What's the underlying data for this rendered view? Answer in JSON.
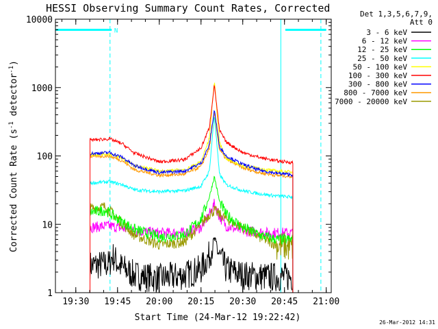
{
  "chart_data": {
    "type": "line",
    "title": "HESSI Observing Summary Count Rates, Corrected",
    "xlabel": "Start Time (24-Mar-12 19:22:42)",
    "ylabel_main": "Corrected Count Rate (s",
    "ylabel_sup1": "-1",
    "ylabel_mid": " detector",
    "ylabel_sup2": "-1",
    "ylabel_end": ")",
    "y_scale": "log",
    "ylim": [
      1,
      10000
    ],
    "xlim": [
      19.378,
      21.03
    ],
    "x_ticks": [
      {
        "v": 19.5,
        "label": "19:30"
      },
      {
        "v": 19.75,
        "label": "19:45"
      },
      {
        "v": 20.0,
        "label": "20:00"
      },
      {
        "v": 20.25,
        "label": "20:15"
      },
      {
        "v": 20.5,
        "label": "20:30"
      },
      {
        "v": 20.75,
        "label": "20:45"
      },
      {
        "v": 21.0,
        "label": "21:00"
      }
    ],
    "y_ticks": [
      {
        "v": 1,
        "label": "1"
      },
      {
        "v": 10,
        "label": "10"
      },
      {
        "v": 100,
        "label": "100"
      },
      {
        "v": 1000,
        "label": "1000"
      },
      {
        "v": 10000,
        "label": "10000"
      }
    ],
    "legend_header": [
      "Det 1,3,5,6,7,9,",
      "Att 0"
    ],
    "legend_position": "right",
    "flags": {
      "night_bar_color": "#00ffff",
      "night_bars": [
        [
          19.378,
          19.715
        ],
        [
          20.755,
          21.0
        ]
      ],
      "night_bar_value": 7000,
      "saa_label": "N",
      "saa_label_x": 19.73,
      "solid_lines": [
        19.378,
        20.728
      ],
      "dashed_lines": [
        19.705,
        20.968
      ]
    },
    "data_start": 19.585,
    "data_end": 20.8,
    "series": [
      {
        "name": "3 - 6 keV",
        "color": "#000000",
        "x": [
          19.585,
          19.7,
          19.72,
          19.76,
          19.85,
          20.0,
          20.15,
          20.25,
          20.3,
          20.33,
          20.36,
          20.4,
          20.5,
          20.65,
          20.8
        ],
        "y": [
          2.5,
          2.6,
          3.5,
          2.5,
          1.8,
          1.6,
          1.8,
          2.2,
          3.5,
          6.0,
          3.5,
          2.2,
          1.8,
          1.7,
          1.7
        ]
      },
      {
        "name": "6 - 12 keV",
        "color": "#ff00ff",
        "x": [
          19.585,
          19.7,
          19.75,
          19.85,
          20.0,
          20.15,
          20.25,
          20.3,
          20.33,
          20.36,
          20.4,
          20.5,
          20.65,
          20.8
        ],
        "y": [
          9.0,
          9.5,
          9.0,
          8.0,
          7.5,
          7.5,
          9.0,
          14.0,
          20.0,
          13.0,
          9.5,
          8.0,
          7.5,
          7.5
        ]
      },
      {
        "name": "12 - 25 keV",
        "color": "#00ff00",
        "x": [
          19.585,
          19.68,
          19.75,
          19.85,
          20.0,
          20.15,
          20.25,
          20.3,
          20.33,
          20.36,
          20.4,
          20.5,
          20.6,
          20.7,
          20.8
        ],
        "y": [
          15.0,
          16.0,
          12.0,
          8.5,
          6.5,
          7.0,
          12.0,
          25.0,
          50.0,
          22.0,
          14.0,
          9.0,
          7.0,
          6.0,
          6.0
        ]
      },
      {
        "name": "25 - 50 keV",
        "color": "#00ffff",
        "x": [
          19.585,
          19.7,
          19.78,
          19.85,
          20.0,
          20.15,
          20.25,
          20.3,
          20.33,
          20.36,
          20.4,
          20.5,
          20.6,
          20.7,
          20.8
        ],
        "y": [
          40.0,
          42.0,
          38.0,
          32.0,
          30.0,
          31.0,
          36.0,
          60.0,
          400.0,
          55.0,
          38.0,
          31.0,
          28.0,
          26.0,
          25.0
        ]
      },
      {
        "name": "50 - 100 keV",
        "color": "#ffff00",
        "x": [
          19.585,
          19.7,
          19.78,
          19.85,
          20.0,
          20.15,
          20.25,
          20.3,
          20.33,
          20.36,
          20.4,
          20.5,
          20.6,
          20.7,
          20.8
        ],
        "y": [
          105.0,
          108.0,
          92.0,
          72.0,
          60.0,
          62.0,
          82.0,
          180.0,
          1300.0,
          160.0,
          92.0,
          72.0,
          65.0,
          60.0,
          58.0
        ]
      },
      {
        "name": "100 - 300 keV",
        "color": "#ff0000",
        "x": [
          19.585,
          19.7,
          19.78,
          19.85,
          20.0,
          20.15,
          20.25,
          20.3,
          20.33,
          20.36,
          20.4,
          20.5,
          20.6,
          20.7,
          20.8
        ],
        "y": [
          170.0,
          178.0,
          150.0,
          110.0,
          82.0,
          88.0,
          130.0,
          260.0,
          1100.0,
          240.0,
          160.0,
          112.0,
          95.0,
          85.0,
          80.0
        ]
      },
      {
        "name": "300 - 800 keV",
        "color": "#0000ff",
        "x": [
          19.585,
          19.7,
          19.78,
          19.85,
          20.0,
          20.15,
          20.25,
          20.3,
          20.33,
          20.36,
          20.4,
          20.5,
          20.6,
          20.7,
          20.8
        ],
        "y": [
          108.0,
          112.0,
          95.0,
          72.0,
          57.0,
          60.0,
          78.0,
          145.0,
          480.0,
          140.0,
          100.0,
          75.0,
          62.0,
          56.0,
          53.0
        ]
      },
      {
        "name": "800 - 7000 keV",
        "color": "#ff9900",
        "x": [
          19.585,
          19.7,
          19.78,
          19.85,
          20.0,
          20.15,
          20.25,
          20.3,
          20.33,
          20.36,
          20.4,
          20.5,
          20.6,
          20.7,
          20.8
        ],
        "y": [
          98.0,
          100.0,
          85.0,
          63.0,
          52.0,
          54.0,
          70.0,
          130.0,
          430.0,
          125.0,
          90.0,
          67.0,
          57.0,
          52.0,
          50.0
        ]
      },
      {
        "name": "7000 - 20000 keV",
        "color": "#999900",
        "x": [
          19.585,
          19.68,
          19.75,
          19.85,
          20.0,
          20.15,
          20.25,
          20.3,
          20.33,
          20.36,
          20.4,
          20.5,
          20.6,
          20.7,
          20.8
        ],
        "y": [
          17.0,
          18.0,
          12.0,
          7.0,
          5.0,
          5.5,
          10.0,
          14.0,
          16.0,
          14.0,
          12.0,
          9.0,
          6.5,
          5.0,
          4.5
        ]
      }
    ]
  },
  "footer": {
    "timestamp": "26-Mar-2012 14:31"
  }
}
